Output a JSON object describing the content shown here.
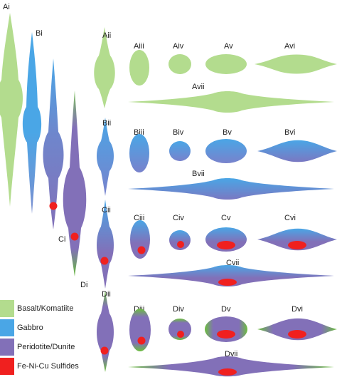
{
  "colors": {
    "basalt": "#b3dc8e",
    "gabbro": "#4aa6e6",
    "peridotite": "#8270b8",
    "sulfide": "#f0201f"
  },
  "labels": {
    "Ai": "Ai",
    "Bi": "Bi",
    "Ci": "Ci",
    "Di": "Di",
    "Aii": "Aii",
    "Aiii": "Aiii",
    "Aiv": "Aiv",
    "Av": "Av",
    "Avi": "Avi",
    "Avii": "Avii",
    "Bii": "Bii",
    "Biii": "Biii",
    "Biv": "Biv",
    "Bv": "Bv",
    "Bvi": "Bvi",
    "Bvii": "Bvii",
    "Cii": "Cii",
    "Ciii": "Ciii",
    "Civ": "Civ",
    "Cv": "Cv",
    "Cvi": "Cvi",
    "Cvii": "Cvii",
    "Dii": "Dii",
    "Diii": "Diii",
    "Div": "Div",
    "Dv": "Dv",
    "Dvi": "Dvi",
    "Dvii": "Dvii"
  },
  "legend": [
    {
      "label": "Basalt/Komatiite",
      "color_key": "basalt"
    },
    {
      "label": "Gabbro",
      "color_key": "gabbro"
    },
    {
      "label": "Peridotite/Dunite",
      "color_key": "peridotite"
    },
    {
      "label": "Fe-Ni-Cu Sulfides",
      "color_key": "sulfide"
    }
  ]
}
